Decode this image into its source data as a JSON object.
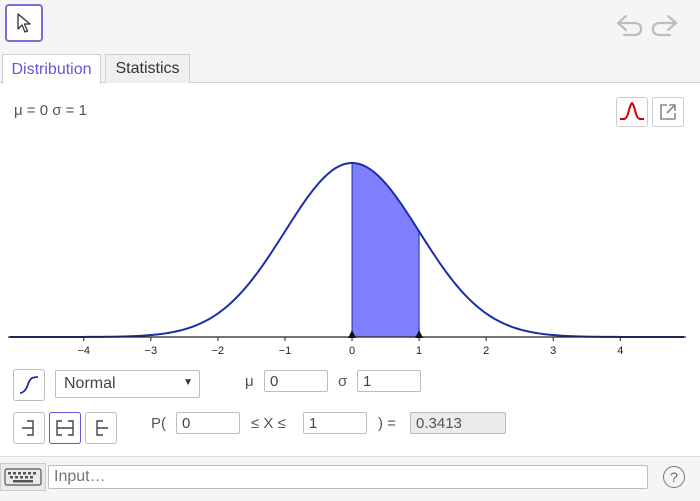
{
  "tabs": [
    {
      "label": "Distribution",
      "active": true
    },
    {
      "label": "Statistics",
      "active": false
    }
  ],
  "params_text": "μ = 0 σ = 1",
  "colors": {
    "accent": "#6557d2",
    "curve": "#1a2ea8",
    "fill": "#8080ff",
    "icon_red": "#cc0000"
  },
  "plot": {
    "x_ticks": [
      "−4",
      "−3",
      "−2",
      "−1",
      "0",
      "1",
      "2",
      "3",
      "4"
    ],
    "x_range": [
      -5.1,
      4.95
    ],
    "shaded_interval": [
      0,
      1
    ]
  },
  "distribution": {
    "selected": "Normal",
    "mu_label": "μ",
    "mu_value": "0",
    "sigma_label": "σ",
    "sigma_value": "1"
  },
  "probability": {
    "p_label": "P(",
    "lower": "0",
    "between_label": "≤ X ≤",
    "upper": "1",
    "equals_label": ") =",
    "result": "0.3413"
  },
  "input_bar": {
    "placeholder": "Input…",
    "help": "?"
  },
  "icons": {
    "pointer": "pointer-arrow-icon",
    "undo": "undo-icon",
    "redo": "redo-icon",
    "curve": "normal-curve-icon",
    "export": "export-icon",
    "cumulative": "cumulative-icon",
    "left_sided": "left-sided-icon",
    "interval": "interval-icon",
    "right_sided": "right-sided-icon",
    "keyboard": "keyboard-icon"
  }
}
